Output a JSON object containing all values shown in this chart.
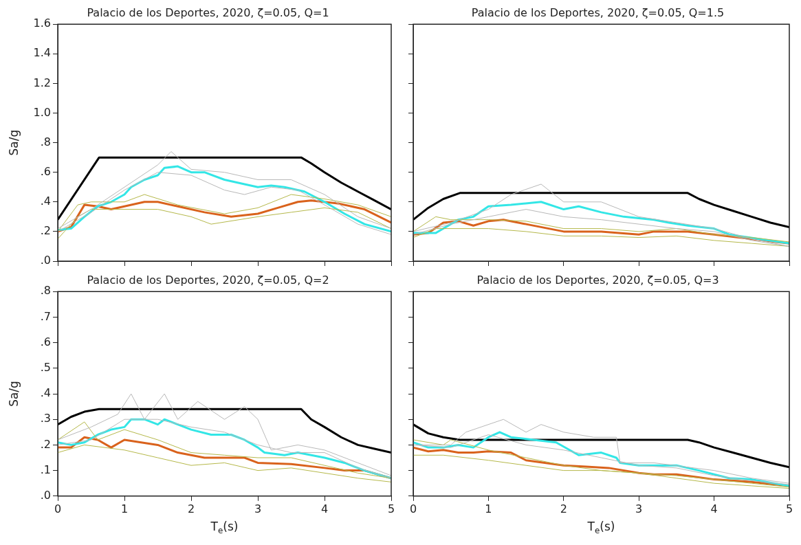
{
  "chart_data": [
    {
      "type": "line",
      "title": "Palacio de los Deportes, 2020, ζ=0.05, Q=1",
      "ylabel": "Sa/g",
      "xlim": [
        0,
        5
      ],
      "xticks": [
        0,
        1,
        2,
        3,
        4,
        5
      ],
      "ylim": [
        0,
        1.6
      ],
      "yticks": [
        {
          "value": 0,
          "label": ".0"
        },
        {
          "value": 0.2,
          "label": ".2"
        },
        {
          "value": 0.4,
          "label": ".4"
        },
        {
          "value": 0.6,
          "label": ".6"
        },
        {
          "value": 0.8,
          "label": ".8"
        },
        {
          "value": 1.0,
          "label": "1.0"
        },
        {
          "value": 1.2,
          "label": "1.2"
        },
        {
          "value": 1.4,
          "label": "1.4"
        },
        {
          "value": 1.6,
          "label": "1.6"
        }
      ],
      "tick_labels": "y",
      "grid": false,
      "legend": false,
      "marker": "none",
      "series": [
        {
          "color": "#b8b8b8",
          "x": [
            0,
            0.5,
            1,
            1.5,
            1.7,
            2,
            2.5,
            3,
            3.5,
            4,
            4.5,
            5
          ],
          "values": [
            0.22,
            0.35,
            0.5,
            0.65,
            0.74,
            0.62,
            0.6,
            0.55,
            0.55,
            0.45,
            0.3,
            0.22
          ]
        },
        {
          "color": "#b8b8b8",
          "x": [
            0,
            0.5,
            1,
            1.5,
            2,
            2.5,
            2.8,
            3.2,
            3.6,
            4,
            4.5,
            5
          ],
          "values": [
            0.2,
            0.33,
            0.48,
            0.6,
            0.58,
            0.48,
            0.45,
            0.5,
            0.48,
            0.38,
            0.25,
            0.18
          ]
        },
        {
          "color": "#b5b84a",
          "x": [
            0,
            0.3,
            0.5,
            1,
            1.3,
            1.8,
            2.5,
            3,
            3.5,
            4,
            4.5,
            5
          ],
          "values": [
            0.2,
            0.38,
            0.4,
            0.4,
            0.45,
            0.38,
            0.32,
            0.36,
            0.45,
            0.42,
            0.38,
            0.3
          ]
        },
        {
          "color": "#b5b84a",
          "x": [
            0,
            0.3,
            0.5,
            1,
            1.5,
            2,
            2.3,
            3,
            3.5,
            4,
            4.5,
            5
          ],
          "values": [
            0.15,
            0.3,
            0.35,
            0.35,
            0.35,
            0.3,
            0.25,
            0.3,
            0.33,
            0.36,
            0.33,
            0.22
          ]
        },
        {
          "color": "#33e6e6",
          "x": [
            0,
            0.2,
            0.4,
            0.6,
            0.8,
            1,
            1.1,
            1.3,
            1.5,
            1.6,
            1.8,
            2,
            2.2,
            2.5,
            2.8,
            3,
            3.2,
            3.4,
            3.7,
            4,
            4.3,
            4.6,
            5
          ],
          "values": [
            0.21,
            0.22,
            0.3,
            0.37,
            0.4,
            0.45,
            0.5,
            0.55,
            0.58,
            0.63,
            0.64,
            0.6,
            0.6,
            0.55,
            0.52,
            0.5,
            0.51,
            0.5,
            0.47,
            0.4,
            0.32,
            0.25,
            0.2
          ]
        },
        {
          "color": "#d9621c",
          "x": [
            0,
            0.2,
            0.4,
            0.6,
            0.8,
            1,
            1.3,
            1.5,
            1.8,
            2.2,
            2.6,
            3,
            3.3,
            3.6,
            3.8,
            4.2,
            4.6,
            5
          ],
          "values": [
            0.2,
            0.23,
            0.38,
            0.37,
            0.35,
            0.37,
            0.4,
            0.4,
            0.37,
            0.33,
            0.3,
            0.32,
            0.36,
            0.4,
            0.41,
            0.39,
            0.35,
            0.26
          ]
        },
        {
          "color": "#000000",
          "x": [
            0,
            0.62,
            3.65,
            3.8,
            4,
            4.25,
            4.5,
            4.75,
            5
          ],
          "values": [
            0.28,
            0.7,
            0.7,
            0.66,
            0.6,
            0.53,
            0.47,
            0.41,
            0.35
          ]
        }
      ]
    },
    {
      "type": "line",
      "title": "Palacio de los Deportes, 2020, ζ=0.05, Q=1.5",
      "xlim": [
        0,
        5
      ],
      "xticks": [
        0,
        1,
        2,
        3,
        4,
        5
      ],
      "ylim": [
        0,
        1.6
      ],
      "yticks": [
        0,
        0.2,
        0.4,
        0.6,
        0.8,
        1.0,
        1.2,
        1.4,
        1.6
      ],
      "tick_labels": false,
      "grid": false,
      "legend": false,
      "marker": "none",
      "series": [
        {
          "color": "#b8b8b8",
          "x": [
            0,
            0.5,
            1,
            1.3,
            1.7,
            2,
            2.5,
            3,
            3.5,
            4,
            4.5,
            5
          ],
          "values": [
            0.2,
            0.26,
            0.35,
            0.45,
            0.52,
            0.4,
            0.4,
            0.3,
            0.26,
            0.22,
            0.15,
            0.1
          ]
        },
        {
          "color": "#b8b8b8",
          "x": [
            0,
            0.5,
            1,
            1.5,
            2,
            2.5,
            3,
            3.5,
            4,
            4.5,
            5
          ],
          "values": [
            0.18,
            0.25,
            0.3,
            0.35,
            0.3,
            0.28,
            0.25,
            0.22,
            0.2,
            0.14,
            0.1
          ]
        },
        {
          "color": "#b5b84a",
          "x": [
            0,
            0.3,
            0.5,
            1,
            1.5,
            2,
            2.5,
            3,
            3.5,
            4,
            4.5,
            5
          ],
          "values": [
            0.2,
            0.3,
            0.28,
            0.28,
            0.27,
            0.22,
            0.22,
            0.2,
            0.22,
            0.18,
            0.16,
            0.13
          ]
        },
        {
          "color": "#b5b84a",
          "x": [
            0,
            0.3,
            1,
            1.5,
            2,
            2.5,
            3,
            3.5,
            4,
            4.5,
            5
          ],
          "values": [
            0.16,
            0.22,
            0.22,
            0.2,
            0.17,
            0.17,
            0.16,
            0.17,
            0.14,
            0.12,
            0.1
          ]
        },
        {
          "color": "#33e6e6",
          "x": [
            0,
            0.3,
            0.6,
            0.8,
            1,
            1.3,
            1.7,
            2,
            2.2,
            2.5,
            2.8,
            3.2,
            3.4,
            3.65,
            4,
            4.2,
            4.6,
            5
          ],
          "values": [
            0.19,
            0.19,
            0.28,
            0.3,
            0.37,
            0.38,
            0.4,
            0.35,
            0.37,
            0.33,
            0.3,
            0.28,
            0.26,
            0.24,
            0.22,
            0.18,
            0.15,
            0.12
          ]
        },
        {
          "color": "#d9621c",
          "x": [
            0,
            0.2,
            0.4,
            0.6,
            0.8,
            1,
            1.2,
            1.5,
            2,
            2.5,
            3,
            3.2,
            3.65,
            4,
            4.5,
            5
          ],
          "values": [
            0.18,
            0.19,
            0.26,
            0.27,
            0.24,
            0.27,
            0.28,
            0.25,
            0.2,
            0.2,
            0.18,
            0.2,
            0.2,
            0.18,
            0.15,
            0.12
          ]
        },
        {
          "color": "#000000",
          "x": [
            0,
            0.2,
            0.4,
            0.62,
            3.65,
            3.8,
            4,
            4.25,
            4.5,
            4.75,
            5
          ],
          "values": [
            0.28,
            0.36,
            0.42,
            0.46,
            0.46,
            0.42,
            0.38,
            0.34,
            0.3,
            0.26,
            0.23
          ]
        }
      ]
    },
    {
      "type": "line",
      "title": "Palacio de los Deportes, 2020, ζ=0.05, Q=2",
      "xlabel": "T$_{e}$(s)",
      "ylabel": "Sa/g",
      "xlim": [
        0,
        5
      ],
      "xticks": [
        0,
        1,
        2,
        3,
        4,
        5
      ],
      "ylim": [
        0,
        0.8
      ],
      "yticks": [
        {
          "value": 0,
          "label": ".0"
        },
        {
          "value": 0.1,
          "label": ".1"
        },
        {
          "value": 0.2,
          "label": ".2"
        },
        {
          "value": 0.3,
          "label": ".3"
        },
        {
          "value": 0.4,
          "label": ".4"
        },
        {
          "value": 0.5,
          "label": ".5"
        },
        {
          "value": 0.6,
          "label": ".6"
        },
        {
          "value": 0.7,
          "label": ".7"
        },
        {
          "value": 0.8,
          "label": ".8"
        }
      ],
      "grid": false,
      "legend": false,
      "marker": "none",
      "series": [
        {
          "color": "#b8b8b8",
          "x": [
            0,
            0.5,
            0.9,
            1.1,
            1.3,
            1.6,
            1.8,
            2.1,
            2.5,
            2.8,
            3,
            3.2,
            3.6,
            4,
            4.5,
            5
          ],
          "values": [
            0.22,
            0.27,
            0.32,
            0.4,
            0.3,
            0.4,
            0.3,
            0.37,
            0.3,
            0.35,
            0.3,
            0.18,
            0.2,
            0.18,
            0.13,
            0.08
          ]
        },
        {
          "color": "#b8b8b8",
          "x": [
            0,
            0.5,
            1,
            1.5,
            2,
            2.5,
            3,
            3.5,
            4,
            4.5,
            5
          ],
          "values": [
            0.2,
            0.22,
            0.3,
            0.3,
            0.27,
            0.25,
            0.2,
            0.17,
            0.17,
            0.11,
            0.07
          ]
        },
        {
          "color": "#b5b84a",
          "x": [
            0,
            0.4,
            0.6,
            1,
            1.5,
            2,
            2.5,
            3,
            3.5,
            4,
            4.5,
            5
          ],
          "values": [
            0.22,
            0.29,
            0.22,
            0.26,
            0.22,
            0.17,
            0.16,
            0.15,
            0.15,
            0.12,
            0.09,
            0.07
          ]
        },
        {
          "color": "#b5b84a",
          "x": [
            0,
            0.4,
            1,
            1.5,
            2,
            2.5,
            3,
            3.5,
            4,
            4.5,
            5
          ],
          "values": [
            0.17,
            0.2,
            0.18,
            0.15,
            0.12,
            0.13,
            0.1,
            0.11,
            0.09,
            0.07,
            0.055
          ]
        },
        {
          "color": "#33e6e6",
          "x": [
            0,
            0.2,
            0.4,
            0.6,
            0.8,
            1,
            1.1,
            1.3,
            1.5,
            1.6,
            1.8,
            2,
            2.3,
            2.6,
            2.8,
            3,
            3.1,
            3.4,
            3.6,
            4,
            4.3,
            4.6,
            5
          ],
          "values": [
            0.21,
            0.2,
            0.21,
            0.24,
            0.26,
            0.27,
            0.3,
            0.3,
            0.28,
            0.3,
            0.28,
            0.26,
            0.24,
            0.24,
            0.22,
            0.19,
            0.17,
            0.16,
            0.17,
            0.15,
            0.13,
            0.1,
            0.07
          ]
        },
        {
          "color": "#d9621c",
          "x": [
            0,
            0.2,
            0.4,
            0.6,
            0.8,
            1,
            1.5,
            1.8,
            2.2,
            2.6,
            2.8,
            3,
            3.5,
            4,
            4.3,
            4.6,
            5
          ],
          "values": [
            0.19,
            0.19,
            0.23,
            0.22,
            0.19,
            0.22,
            0.2,
            0.17,
            0.15,
            0.15,
            0.15,
            0.13,
            0.125,
            0.11,
            0.1,
            0.1,
            0.07
          ]
        },
        {
          "color": "#000000",
          "x": [
            0,
            0.2,
            0.4,
            0.62,
            3.65,
            3.8,
            4,
            4.25,
            4.5,
            4.75,
            5
          ],
          "values": [
            0.28,
            0.31,
            0.33,
            0.34,
            0.34,
            0.3,
            0.27,
            0.23,
            0.2,
            0.185,
            0.17
          ]
        }
      ]
    },
    {
      "type": "line",
      "title": "Palacio de los Deportes, 2020, ζ=0.05, Q=3",
      "xlabel": "T$_{e}$(s)",
      "xlim": [
        0,
        5
      ],
      "xticks": [
        0,
        1,
        2,
        3,
        4,
        5
      ],
      "ylim": [
        0,
        0.8
      ],
      "yticks": [
        0,
        0.1,
        0.2,
        0.3,
        0.4,
        0.5,
        0.6,
        0.7,
        0.8
      ],
      "tick_labels": "x",
      "grid": false,
      "legend": false,
      "marker": "none",
      "series": [
        {
          "color": "#b8b8b8",
          "x": [
            0,
            0.5,
            0.7,
            1.2,
            1.5,
            1.7,
            2,
            2.4,
            2.7,
            2.75,
            3.2,
            4,
            4.5,
            5
          ],
          "values": [
            0.2,
            0.2,
            0.25,
            0.3,
            0.25,
            0.28,
            0.25,
            0.23,
            0.23,
            0.13,
            0.13,
            0.1,
            0.07,
            0.05
          ]
        },
        {
          "color": "#b8b8b8",
          "x": [
            0,
            0.5,
            1,
            1.5,
            2,
            2.5,
            3,
            3.5,
            4,
            4.5,
            5
          ],
          "values": [
            0.2,
            0.19,
            0.24,
            0.2,
            0.18,
            0.15,
            0.12,
            0.11,
            0.08,
            0.06,
            0.045
          ]
        },
        {
          "color": "#b5b84a",
          "x": [
            0,
            0.4,
            0.5,
            1,
            1.5,
            2,
            2.5,
            3,
            3.5,
            4,
            4.5,
            5
          ],
          "values": [
            0.22,
            0.2,
            0.22,
            0.18,
            0.15,
            0.12,
            0.1,
            0.09,
            0.08,
            0.065,
            0.05,
            0.035
          ]
        },
        {
          "color": "#b5b84a",
          "x": [
            0,
            0.4,
            1,
            1.5,
            2,
            2.5,
            3,
            3.5,
            4,
            4.5,
            5
          ],
          "values": [
            0.16,
            0.16,
            0.14,
            0.12,
            0.1,
            0.1,
            0.09,
            0.07,
            0.05,
            0.04,
            0.03
          ]
        },
        {
          "color": "#33e6e6",
          "x": [
            0,
            0.2,
            0.4,
            0.6,
            0.8,
            1,
            1.15,
            1.3,
            1.6,
            1.9,
            2.2,
            2.5,
            2.7,
            2.75,
            3,
            3.5,
            3.8,
            4.2,
            4.5,
            5
          ],
          "values": [
            0.21,
            0.19,
            0.19,
            0.2,
            0.19,
            0.23,
            0.25,
            0.23,
            0.22,
            0.21,
            0.16,
            0.17,
            0.15,
            0.13,
            0.12,
            0.12,
            0.1,
            0.07,
            0.065,
            0.04
          ]
        },
        {
          "color": "#d9621c",
          "x": [
            0,
            0.2,
            0.4,
            0.6,
            0.8,
            1,
            1.3,
            1.5,
            2,
            2.3,
            2.6,
            3,
            3.2,
            3.5,
            4,
            4.5,
            5
          ],
          "values": [
            0.19,
            0.175,
            0.18,
            0.17,
            0.17,
            0.175,
            0.17,
            0.14,
            0.12,
            0.115,
            0.11,
            0.09,
            0.085,
            0.085,
            0.065,
            0.055,
            0.04
          ]
        },
        {
          "color": "#000000",
          "x": [
            0,
            0.2,
            0.4,
            0.62,
            3.65,
            3.8,
            4,
            4.25,
            4.5,
            4.75,
            5
          ],
          "values": [
            0.28,
            0.245,
            0.23,
            0.22,
            0.22,
            0.21,
            0.19,
            0.17,
            0.15,
            0.13,
            0.113
          ]
        }
      ]
    }
  ]
}
